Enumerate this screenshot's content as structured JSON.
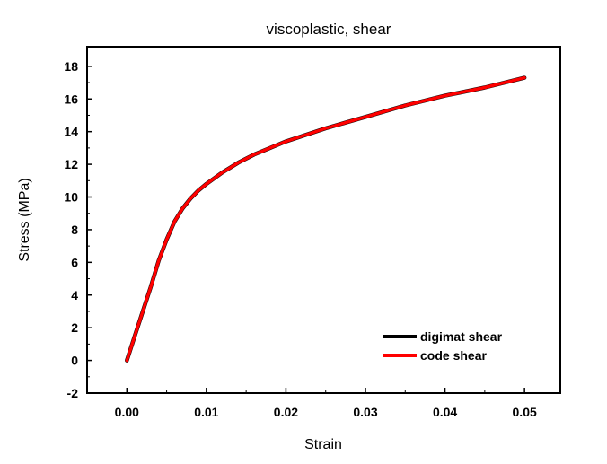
{
  "chart_data": {
    "type": "line",
    "title": "viscoplastic, shear",
    "xlabel": "Strain",
    "ylabel": "Stress (MPa)",
    "xlim": [
      -0.005,
      0.0545
    ],
    "ylim": [
      -2,
      19.2
    ],
    "xticks": [
      0.0,
      0.01,
      0.02,
      0.03,
      0.04,
      0.05
    ],
    "xtick_labels": [
      "0.00",
      "0.01",
      "0.02",
      "0.03",
      "0.04",
      "0.05"
    ],
    "yticks": [
      -2,
      0,
      2,
      4,
      6,
      8,
      10,
      12,
      14,
      16,
      18
    ],
    "ytick_labels": [
      "-2",
      "0",
      "2",
      "4",
      "6",
      "8",
      "10",
      "12",
      "14",
      "16",
      "18"
    ],
    "grid": false,
    "legend_position": "bottom-right",
    "series": [
      {
        "name": "digimat shear",
        "color": "#000000",
        "x": [
          0.0,
          0.001,
          0.002,
          0.003,
          0.004,
          0.005,
          0.006,
          0.007,
          0.008,
          0.009,
          0.01,
          0.012,
          0.014,
          0.016,
          0.018,
          0.02,
          0.025,
          0.03,
          0.035,
          0.04,
          0.045,
          0.05
        ],
        "y": [
          0.0,
          1.5,
          3.0,
          4.5,
          6.1,
          7.4,
          8.5,
          9.3,
          9.9,
          10.4,
          10.8,
          11.5,
          12.1,
          12.6,
          13.0,
          13.4,
          14.2,
          14.9,
          15.6,
          16.2,
          16.7,
          17.3
        ]
      },
      {
        "name": "code shear",
        "color": "#ff0000",
        "x": [
          0.0,
          0.001,
          0.002,
          0.003,
          0.004,
          0.005,
          0.006,
          0.007,
          0.008,
          0.009,
          0.01,
          0.012,
          0.014,
          0.016,
          0.018,
          0.02,
          0.025,
          0.03,
          0.035,
          0.04,
          0.045,
          0.05
        ],
        "y": [
          0.0,
          1.5,
          3.0,
          4.5,
          6.1,
          7.4,
          8.5,
          9.3,
          9.9,
          10.4,
          10.8,
          11.5,
          12.1,
          12.6,
          13.0,
          13.4,
          14.2,
          14.9,
          15.6,
          16.2,
          16.7,
          17.3
        ]
      }
    ]
  }
}
